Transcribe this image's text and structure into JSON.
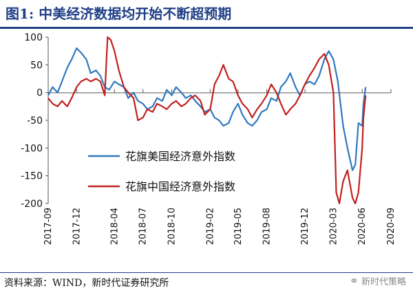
{
  "header": {
    "title": "图1:   中美经济数据均开始不断超预期"
  },
  "footer": {
    "source": "资料来源：WIND，新时代证券研究所",
    "watermark": "新时代策略",
    "watermark_icon": "wechat-icon"
  },
  "colors": {
    "us": "#2f78bd",
    "cn": "#c0201e",
    "title": "#1f3f86"
  },
  "chart_data": {
    "type": "line",
    "title": "",
    "xlabel": "",
    "ylabel": "",
    "ylim": [
      -200,
      100
    ],
    "xlim": [
      "2017-09",
      "2020-09"
    ],
    "yticks": [
      100,
      50,
      0,
      -50,
      -100,
      -150,
      -200
    ],
    "xticks": [
      "2017-09",
      "2017-12",
      "2018-04",
      "2018-07",
      "2018-10",
      "2019-02",
      "2019-05",
      "2019-08",
      "2019-12",
      "2020-03",
      "2020-06",
      "2020-09"
    ],
    "legend": {
      "placement": "center-left"
    },
    "series": [
      {
        "name": "花旗美国经济意外指数",
        "color": "#2f78bd",
        "points": [
          [
            "2017-09",
            -5
          ],
          [
            "2017-09-15",
            10
          ],
          [
            "2017-10",
            0
          ],
          [
            "2017-10-15",
            20
          ],
          [
            "2017-11",
            45
          ],
          [
            "2017-11-15",
            60
          ],
          [
            "2017-12",
            80
          ],
          [
            "2017-12-15",
            72
          ],
          [
            "2018-01",
            60
          ],
          [
            "2018-01-15",
            35
          ],
          [
            "2018-02",
            40
          ],
          [
            "2018-02-15",
            30
          ],
          [
            "2018-03",
            10
          ],
          [
            "2018-03-15",
            5
          ],
          [
            "2018-04",
            20
          ],
          [
            "2018-04-15",
            15
          ],
          [
            "2018-05",
            10
          ],
          [
            "2018-05-15",
            -10
          ],
          [
            "2018-06",
            0
          ],
          [
            "2018-06-15",
            -15
          ],
          [
            "2018-07",
            -20
          ],
          [
            "2018-07-15",
            -30
          ],
          [
            "2018-08",
            -25
          ],
          [
            "2018-08-15",
            -10
          ],
          [
            "2018-09",
            -15
          ],
          [
            "2018-09-15",
            5
          ],
          [
            "2018-10",
            -5
          ],
          [
            "2018-10-15",
            10
          ],
          [
            "2018-11",
            0
          ],
          [
            "2018-11-15",
            -10
          ],
          [
            "2018-12",
            -5
          ],
          [
            "2018-12-15",
            -15
          ],
          [
            "2019-01",
            -25
          ],
          [
            "2019-01-15",
            -35
          ],
          [
            "2019-02",
            -30
          ],
          [
            "2019-02-15",
            -45
          ],
          [
            "2019-03",
            -50
          ],
          [
            "2019-03-15",
            -60
          ],
          [
            "2019-04",
            -55
          ],
          [
            "2019-04-15",
            -35
          ],
          [
            "2019-05",
            -20
          ],
          [
            "2019-05-15",
            -40
          ],
          [
            "2019-06",
            -55
          ],
          [
            "2019-06-15",
            -60
          ],
          [
            "2019-07",
            -50
          ],
          [
            "2019-07-15",
            -35
          ],
          [
            "2019-08",
            -30
          ],
          [
            "2019-08-15",
            -10
          ],
          [
            "2019-09",
            -15
          ],
          [
            "2019-09-15",
            10
          ],
          [
            "2019-10",
            20
          ],
          [
            "2019-10-15",
            35
          ],
          [
            "2019-11",
            10
          ],
          [
            "2019-11-15",
            -5
          ],
          [
            "2019-12",
            15
          ],
          [
            "2019-12-15",
            20
          ],
          [
            "2020-01",
            15
          ],
          [
            "2020-01-15",
            30
          ],
          [
            "2020-02",
            60
          ],
          [
            "2020-02-15",
            75
          ],
          [
            "2020-03",
            60
          ],
          [
            "2020-03-15",
            20
          ],
          [
            "2020-04",
            -60
          ],
          [
            "2020-04-15",
            -100
          ],
          [
            "2020-05",
            -140
          ],
          [
            "2020-05-10",
            -130
          ],
          [
            "2020-05-20",
            -55
          ],
          [
            "2020-06",
            -60
          ],
          [
            "2020-06-05",
            -20
          ],
          [
            "2020-06-12",
            10
          ]
        ]
      },
      {
        "name": "花旗中国经济意外指数",
        "color": "#c0201e",
        "points": [
          [
            "2017-09",
            -10
          ],
          [
            "2017-09-15",
            -20
          ],
          [
            "2017-10",
            -25
          ],
          [
            "2017-10-15",
            -15
          ],
          [
            "2017-11",
            -25
          ],
          [
            "2017-11-15",
            -10
          ],
          [
            "2017-12",
            10
          ],
          [
            "2017-12-15",
            20
          ],
          [
            "2018-01",
            25
          ],
          [
            "2018-01-15",
            20
          ],
          [
            "2018-02",
            25
          ],
          [
            "2018-02-15",
            20
          ],
          [
            "2018-03",
            -5
          ],
          [
            "2018-03-10",
            100
          ],
          [
            "2018-03-20",
            95
          ],
          [
            "2018-04",
            75
          ],
          [
            "2018-04-15",
            40
          ],
          [
            "2018-05",
            10
          ],
          [
            "2018-05-15",
            0
          ],
          [
            "2018-06",
            -10
          ],
          [
            "2018-06-15",
            -50
          ],
          [
            "2018-07",
            -45
          ],
          [
            "2018-07-15",
            -30
          ],
          [
            "2018-08",
            -35
          ],
          [
            "2018-08-15",
            -20
          ],
          [
            "2018-09",
            -25
          ],
          [
            "2018-09-15",
            -30
          ],
          [
            "2018-10",
            -20
          ],
          [
            "2018-10-15",
            -15
          ],
          [
            "2018-11",
            -25
          ],
          [
            "2018-11-15",
            -20
          ],
          [
            "2018-12",
            -10
          ],
          [
            "2018-12-15",
            -5
          ],
          [
            "2019-01",
            -15
          ],
          [
            "2019-01-15",
            -40
          ],
          [
            "2019-02",
            -30
          ],
          [
            "2019-02-15",
            15
          ],
          [
            "2019-03",
            30
          ],
          [
            "2019-03-15",
            50
          ],
          [
            "2019-04",
            25
          ],
          [
            "2019-04-15",
            20
          ],
          [
            "2019-05",
            -5
          ],
          [
            "2019-05-15",
            -20
          ],
          [
            "2019-06",
            -30
          ],
          [
            "2019-06-15",
            -45
          ],
          [
            "2019-07",
            -30
          ],
          [
            "2019-07-15",
            -20
          ],
          [
            "2019-08",
            -5
          ],
          [
            "2019-08-15",
            15
          ],
          [
            "2019-09",
            0
          ],
          [
            "2019-09-15",
            -20
          ],
          [
            "2019-10",
            -40
          ],
          [
            "2019-10-15",
            -30
          ],
          [
            "2019-11",
            -20
          ],
          [
            "2019-11-15",
            -5
          ],
          [
            "2019-12",
            15
          ],
          [
            "2019-12-15",
            30
          ],
          [
            "2020-01",
            45
          ],
          [
            "2020-01-15",
            60
          ],
          [
            "2020-02",
            70
          ],
          [
            "2020-02-15",
            50
          ],
          [
            "2020-03",
            0
          ],
          [
            "2020-03-10",
            -180
          ],
          [
            "2020-03-20",
            -200
          ],
          [
            "2020-04",
            -160
          ],
          [
            "2020-04-15",
            -140
          ],
          [
            "2020-05",
            -190
          ],
          [
            "2020-05-10",
            -200
          ],
          [
            "2020-05-20",
            -180
          ],
          [
            "2020-06",
            -100
          ],
          [
            "2020-06-05",
            -45
          ],
          [
            "2020-06-12",
            -5
          ]
        ]
      }
    ]
  }
}
